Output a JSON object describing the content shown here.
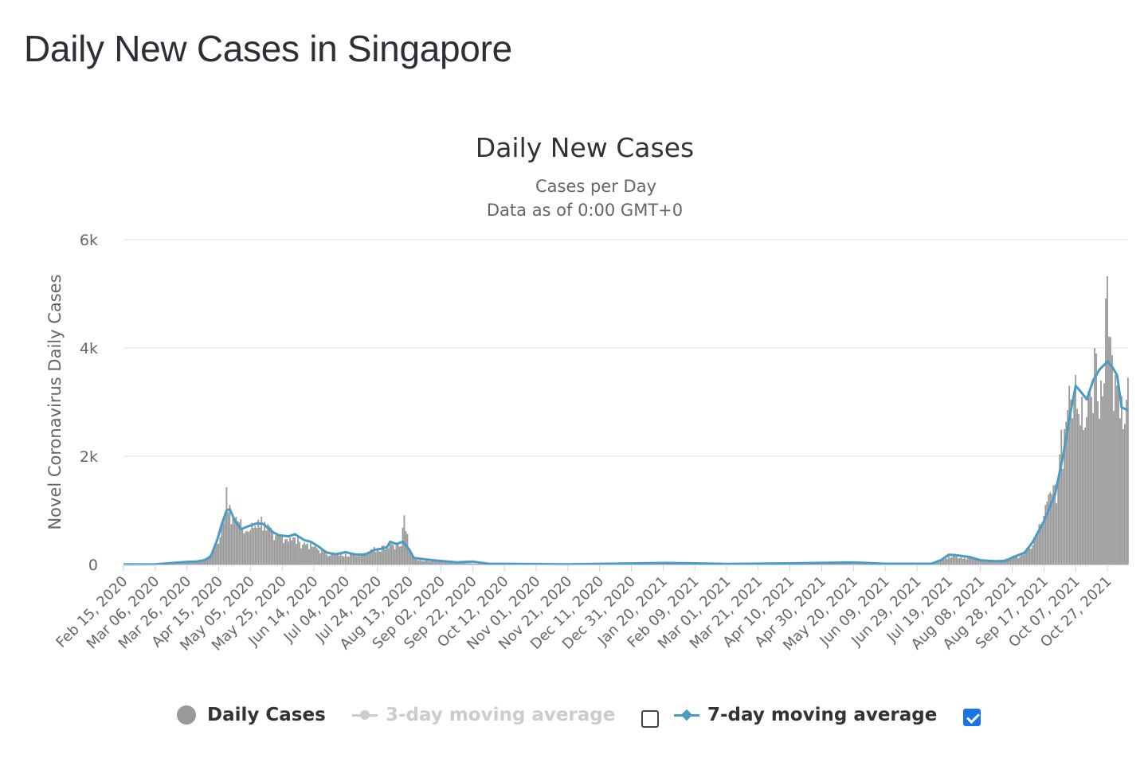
{
  "page_title": "Daily New Cases in Singapore",
  "chart_data": {
    "type": "bar",
    "title": "Daily New Cases",
    "subtitle_line1": "Cases per Day",
    "subtitle_line2": "Data as of 0:00 GMT+0",
    "xlabel": "",
    "ylabel": "Novel Coronavirus Daily Cases",
    "ylim": [
      0,
      6000
    ],
    "yticks": [
      0,
      2000,
      4000,
      6000
    ],
    "ytick_labels": [
      "0",
      "2k",
      "4k",
      "6k"
    ],
    "grid": true,
    "legend_position": "bottom-center",
    "x_start": "Feb 15, 2020",
    "x_end": "Nov 09, 2021",
    "xtick_labels": [
      "Feb 15, 2020",
      "Mar 06, 2020",
      "Mar 26, 2020",
      "Apr 15, 2020",
      "May 05, 2020",
      "May 25, 2020",
      "Jun 14, 2020",
      "Jul 04, 2020",
      "Jul 24, 2020",
      "Aug 13, 2020",
      "Sep 02, 2020",
      "Sep 22, 2020",
      "Oct 12, 2020",
      "Nov 01, 2020",
      "Nov 21, 2020",
      "Dec 11, 2020",
      "Dec 31, 2020",
      "Jan 20, 2021",
      "Feb 09, 2021",
      "Mar 01, 2021",
      "Mar 21, 2021",
      "Apr 10, 2021",
      "Apr 30, 2021",
      "May 20, 2021",
      "Jun 09, 2021",
      "Jun 29, 2021",
      "Jul 19, 2021",
      "Aug 08, 2021",
      "Aug 28, 2021",
      "Sep 17, 2021",
      "Oct 07, 2021",
      "Oct 27, 2021"
    ],
    "series": [
      {
        "name": "Daily Cases",
        "kind": "bar",
        "color": "#999999",
        "visible": true,
        "points": [
          [
            "Feb 15, 2020",
            1
          ],
          [
            "Mar 06, 2020",
            5
          ],
          [
            "Mar 20, 2020",
            40
          ],
          [
            "Mar 26, 2020",
            52
          ],
          [
            "Apr 01, 2020",
            60
          ],
          [
            "Apr 07, 2020",
            100
          ],
          [
            "Apr 10, 2020",
            190
          ],
          [
            "Apr 14, 2020",
            380
          ],
          [
            "Apr 17, 2020",
            720
          ],
          [
            "Apr 19, 2020",
            900
          ],
          [
            "Apr 20, 2020",
            1426
          ],
          [
            "Apr 22, 2020",
            1100
          ],
          [
            "Apr 24, 2020",
            900
          ],
          [
            "Apr 27, 2020",
            800
          ],
          [
            "Apr 30, 2020",
            650
          ],
          [
            "May 05, 2020",
            640
          ],
          [
            "May 10, 2020",
            830
          ],
          [
            "May 14, 2020",
            790
          ],
          [
            "May 20, 2020",
            450
          ],
          [
            "May 25, 2020",
            550
          ],
          [
            "May 30, 2020",
            500
          ],
          [
            "Jun 05, 2020",
            420
          ],
          [
            "Jun 10, 2020",
            390
          ],
          [
            "Jun 14, 2020",
            330
          ],
          [
            "Jun 20, 2020",
            230
          ],
          [
            "Jun 26, 2020",
            190
          ],
          [
            "Jul 04, 2020",
            200
          ],
          [
            "Jul 10, 2020",
            190
          ],
          [
            "Jul 16, 2020",
            220
          ],
          [
            "Jul 20, 2020",
            280
          ],
          [
            "Jul 24, 2020",
            300
          ],
          [
            "Jul 28, 2020",
            350
          ],
          [
            "Aug 01, 2020",
            400
          ],
          [
            "Aug 05, 2020",
            380
          ],
          [
            "Aug 08, 2020",
            340
          ],
          [
            "Aug 10, 2020",
            908
          ],
          [
            "Aug 13, 2020",
            260
          ],
          [
            "Aug 17, 2020",
            100
          ],
          [
            "Aug 24, 2020",
            80
          ],
          [
            "Sep 02, 2020",
            55
          ],
          [
            "Sep 12, 2020",
            30
          ],
          [
            "Sep 22, 2020",
            20
          ],
          [
            "Oct 12, 2020",
            8
          ],
          [
            "Nov 21, 2020",
            5
          ],
          [
            "Dec 31, 2020",
            18
          ],
          [
            "Jan 20, 2021",
            28
          ],
          [
            "Feb 09, 2021",
            20
          ],
          [
            "Mar 21, 2021",
            15
          ],
          [
            "Apr 30, 2021",
            28
          ],
          [
            "May 20, 2021",
            35
          ],
          [
            "Jun 09, 2021",
            15
          ],
          [
            "Jul 08, 2021",
            10
          ],
          [
            "Jul 15, 2021",
            80
          ],
          [
            "Jul 19, 2021",
            170
          ],
          [
            "Jul 24, 2021",
            150
          ],
          [
            "Aug 01, 2021",
            120
          ],
          [
            "Aug 08, 2021",
            80
          ],
          [
            "Aug 18, 2021",
            55
          ],
          [
            "Aug 28, 2021",
            130
          ],
          [
            "Sep 03, 2021",
            180
          ],
          [
            "Sep 08, 2021",
            300
          ],
          [
            "Sep 12, 2021",
            500
          ],
          [
            "Sep 17, 2021",
            900
          ],
          [
            "Sep 22, 2021",
            1300
          ],
          [
            "Sep 26, 2021",
            1600
          ],
          [
            "Sep 30, 2021",
            2500
          ],
          [
            "Oct 03, 2021",
            3300
          ],
          [
            "Oct 07, 2021",
            3500
          ],
          [
            "Oct 11, 2021",
            3100
          ],
          [
            "Oct 15, 2021",
            3200
          ],
          [
            "Oct 20, 2021",
            3900
          ],
          [
            "Oct 23, 2021",
            3400
          ],
          [
            "Oct 27, 2021",
            5324
          ],
          [
            "Oct 29, 2021",
            4200
          ],
          [
            "Nov 01, 2021",
            3500
          ],
          [
            "Nov 04, 2021",
            2700
          ],
          [
            "Nov 06, 2021",
            2500
          ],
          [
            "Nov 09, 2021",
            3450
          ]
        ]
      },
      {
        "name": "3-day moving average",
        "kind": "line",
        "color": "#cccccc",
        "visible": false,
        "checkbox_checked": false
      },
      {
        "name": "7-day moving average",
        "kind": "line",
        "color": "#4a9cc4",
        "visible": true,
        "checkbox_checked": true,
        "points": [
          [
            "Feb 15, 2020",
            1
          ],
          [
            "Mar 06, 2020",
            3
          ],
          [
            "Mar 26, 2020",
            50
          ],
          [
            "Apr 01, 2020",
            55
          ],
          [
            "Apr 06, 2020",
            80
          ],
          [
            "Apr 10, 2020",
            150
          ],
          [
            "Apr 14, 2020",
            450
          ],
          [
            "Apr 17, 2020",
            750
          ],
          [
            "Apr 20, 2020",
            1000
          ],
          [
            "Apr 22, 2020",
            1020
          ],
          [
            "Apr 25, 2020",
            820
          ],
          [
            "Apr 29, 2020",
            650
          ],
          [
            "May 03, 2020",
            700
          ],
          [
            "May 09, 2020",
            760
          ],
          [
            "May 13, 2020",
            750
          ],
          [
            "May 19, 2020",
            600
          ],
          [
            "May 23, 2020",
            540
          ],
          [
            "May 29, 2020",
            520
          ],
          [
            "Jun 02, 2020",
            560
          ],
          [
            "Jun 08, 2020",
            450
          ],
          [
            "Jun 12, 2020",
            420
          ],
          [
            "Jun 16, 2020",
            350
          ],
          [
            "Jun 22, 2020",
            220
          ],
          [
            "Jun 28, 2020",
            190
          ],
          [
            "Jul 04, 2020",
            230
          ],
          [
            "Jul 10, 2020",
            185
          ],
          [
            "Jul 16, 2020",
            180
          ],
          [
            "Jul 22, 2020",
            270
          ],
          [
            "Jul 26, 2020",
            290
          ],
          [
            "Jul 30, 2020",
            320
          ],
          [
            "Aug 01, 2020",
            420
          ],
          [
            "Aug 05, 2020",
            380
          ],
          [
            "Aug 09, 2020",
            420
          ],
          [
            "Aug 13, 2020",
            280
          ],
          [
            "Aug 16, 2020",
            120
          ],
          [
            "Aug 28, 2020",
            80
          ],
          [
            "Sep 12, 2020",
            40
          ],
          [
            "Sep 22, 2020",
            55
          ],
          [
            "Oct 02, 2020",
            15
          ],
          [
            "Nov 21, 2020",
            5
          ],
          [
            "Dec 31, 2020",
            20
          ],
          [
            "Jan 20, 2021",
            30
          ],
          [
            "Feb 09, 2021",
            22
          ],
          [
            "Mar 01, 2021",
            12
          ],
          [
            "Apr 10, 2021",
            22
          ],
          [
            "May 20, 2021",
            38
          ],
          [
            "Jun 09, 2021",
            15
          ],
          [
            "Jul 08, 2021",
            15
          ],
          [
            "Jul 14, 2021",
            80
          ],
          [
            "Jul 19, 2021",
            180
          ],
          [
            "Jul 23, 2021",
            175
          ],
          [
            "Aug 01, 2021",
            140
          ],
          [
            "Aug 08, 2021",
            80
          ],
          [
            "Aug 18, 2021",
            60
          ],
          [
            "Aug 24, 2021",
            70
          ],
          [
            "Aug 28, 2021",
            130
          ],
          [
            "Sep 05, 2021",
            220
          ],
          [
            "Sep 10, 2021",
            420
          ],
          [
            "Sep 17, 2021",
            800
          ],
          [
            "Sep 24, 2021",
            1300
          ],
          [
            "Sep 29, 2021",
            2000
          ],
          [
            "Oct 03, 2021",
            2700
          ],
          [
            "Oct 07, 2021",
            3300
          ],
          [
            "Oct 10, 2021",
            3200
          ],
          [
            "Oct 14, 2021",
            3050
          ],
          [
            "Oct 18, 2021",
            3400
          ],
          [
            "Oct 22, 2021",
            3600
          ],
          [
            "Oct 27, 2021",
            3750
          ],
          [
            "Oct 30, 2021",
            3650
          ],
          [
            "Nov 02, 2021",
            3500
          ],
          [
            "Nov 05, 2021",
            2900
          ],
          [
            "Nov 09, 2021",
            2850
          ]
        ]
      }
    ]
  },
  "legend": {
    "daily_label": "Daily Cases",
    "ma3_label": "3-day moving average",
    "ma7_label": "7-day moving average"
  }
}
